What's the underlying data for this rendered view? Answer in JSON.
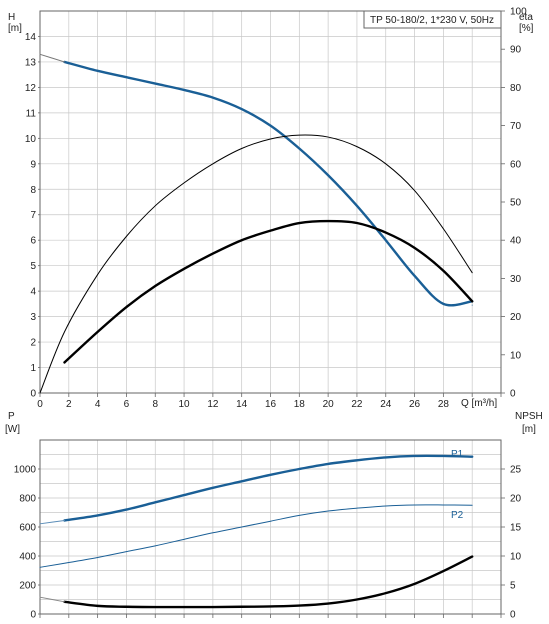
{
  "chart_data": [
    {
      "type": "line",
      "title": "TP 50-180/2, 1*230 V, 50Hz",
      "xlabel": "Q [m³/h]",
      "x_tick_labels": [
        "0",
        "2",
        "4",
        "6",
        "8",
        "10",
        "12",
        "14",
        "16",
        "18",
        "20",
        "22",
        "24",
        "26",
        "28"
      ],
      "xlim": [
        0,
        32
      ],
      "left_axis": {
        "label_top": "H",
        "label_unit": "[m]",
        "ylim": [
          0,
          15
        ],
        "tick_labels": [
          "0",
          "1",
          "2",
          "3",
          "4",
          "5",
          "6",
          "7",
          "8",
          "9",
          "10",
          "11",
          "12",
          "13",
          "14"
        ]
      },
      "right_axis": {
        "label_top": "eta",
        "label_unit": "[%]",
        "ylim": [
          0,
          100
        ],
        "tick_labels": [
          "0",
          "10",
          "20",
          "30",
          "40",
          "50",
          "60",
          "70",
          "80",
          "90",
          "100"
        ]
      },
      "series": [
        {
          "axis": "left",
          "color": "#1a5f96",
          "style": "thick",
          "x": [
            1.7,
            4,
            6,
            8,
            10,
            12,
            14,
            16,
            18,
            20,
            22,
            24,
            26,
            28,
            30
          ],
          "y": [
            13.0,
            12.65,
            12.4,
            12.15,
            11.9,
            11.6,
            11.15,
            10.5,
            9.6,
            8.55,
            7.35,
            6.0,
            4.6,
            3.5,
            3.6
          ]
        },
        {
          "axis": "left",
          "color": "#777777",
          "style": "thin",
          "x": [
            0,
            1.7
          ],
          "y": [
            13.3,
            13.0
          ]
        },
        {
          "axis": "right",
          "color": "#000000",
          "style": "thin",
          "x": [
            0,
            1.7,
            4,
            6,
            8,
            10,
            12,
            14,
            16,
            18,
            20,
            22,
            24,
            26,
            28,
            30
          ],
          "y": [
            0,
            16,
            31,
            41,
            49,
            55,
            60,
            64,
            66.5,
            67.5,
            67,
            64.5,
            60,
            53,
            43,
            31.5
          ]
        },
        {
          "axis": "right",
          "color": "#000000",
          "style": "thick",
          "x": [
            1.7,
            4,
            6,
            8,
            10,
            12,
            14,
            16,
            18,
            20,
            22,
            24,
            26,
            28,
            30
          ],
          "y": [
            8,
            16,
            22.5,
            28,
            32.5,
            36.5,
            40,
            42.5,
            44.5,
            45,
            44.5,
            42,
            38,
            32,
            24
          ]
        },
        {
          "axis": "left",
          "color": "#1a5f96",
          "style": "thin",
          "x": [
            30,
            30
          ],
          "y": [
            3.45,
            3.45
          ]
        }
      ]
    },
    {
      "type": "line",
      "xlim": [
        0,
        32
      ],
      "left_axis": {
        "label_top": "P",
        "label_unit": "[W]",
        "ylim": [
          0,
          1200
        ],
        "tick_labels": [
          "0",
          "200",
          "400",
          "600",
          "800",
          "1000"
        ]
      },
      "right_axis": {
        "label_top": "NPSH",
        "label_unit": "[m]",
        "ylim": [
          0,
          30
        ],
        "tick_labels": [
          "0",
          "5",
          "10",
          "15",
          "20",
          "25"
        ]
      },
      "series": [
        {
          "name": "P1",
          "axis": "left",
          "color": "#1a5f96",
          "style": "thick",
          "x": [
            1.7,
            4,
            6,
            8,
            10,
            12,
            14,
            16,
            18,
            20,
            22,
            24,
            26,
            28,
            30
          ],
          "y": [
            645,
            680,
            720,
            770,
            820,
            870,
            915,
            960,
            1000,
            1035,
            1060,
            1080,
            1090,
            1090,
            1085
          ]
        },
        {
          "axis": "left",
          "color": "#5b8db8",
          "style": "thin",
          "x": [
            0,
            1.7
          ],
          "y": [
            622,
            645
          ]
        },
        {
          "name": "P2",
          "axis": "left",
          "color": "#1a5f96",
          "style": "thin",
          "x": [
            0,
            1.7,
            4,
            6,
            8,
            10,
            12,
            14,
            16,
            18,
            20,
            22,
            24,
            26,
            28,
            30
          ],
          "y": [
            322,
            350,
            390,
            430,
            470,
            515,
            560,
            600,
            640,
            680,
            710,
            730,
            745,
            752,
            752,
            750
          ]
        },
        {
          "axis": "right",
          "color": "#000000",
          "style": "thick",
          "x": [
            1.7,
            4,
            6,
            8,
            10,
            12,
            14,
            16,
            18,
            20,
            22,
            24,
            26,
            28,
            30
          ],
          "y": [
            2.1,
            1.4,
            1.25,
            1.2,
            1.2,
            1.2,
            1.25,
            1.3,
            1.45,
            1.8,
            2.5,
            3.6,
            5.2,
            7.4,
            9.9
          ]
        },
        {
          "axis": "right",
          "color": "#888888",
          "style": "thin",
          "x": [
            0,
            1.7
          ],
          "y": [
            2.9,
            2.1
          ]
        }
      ]
    }
  ]
}
